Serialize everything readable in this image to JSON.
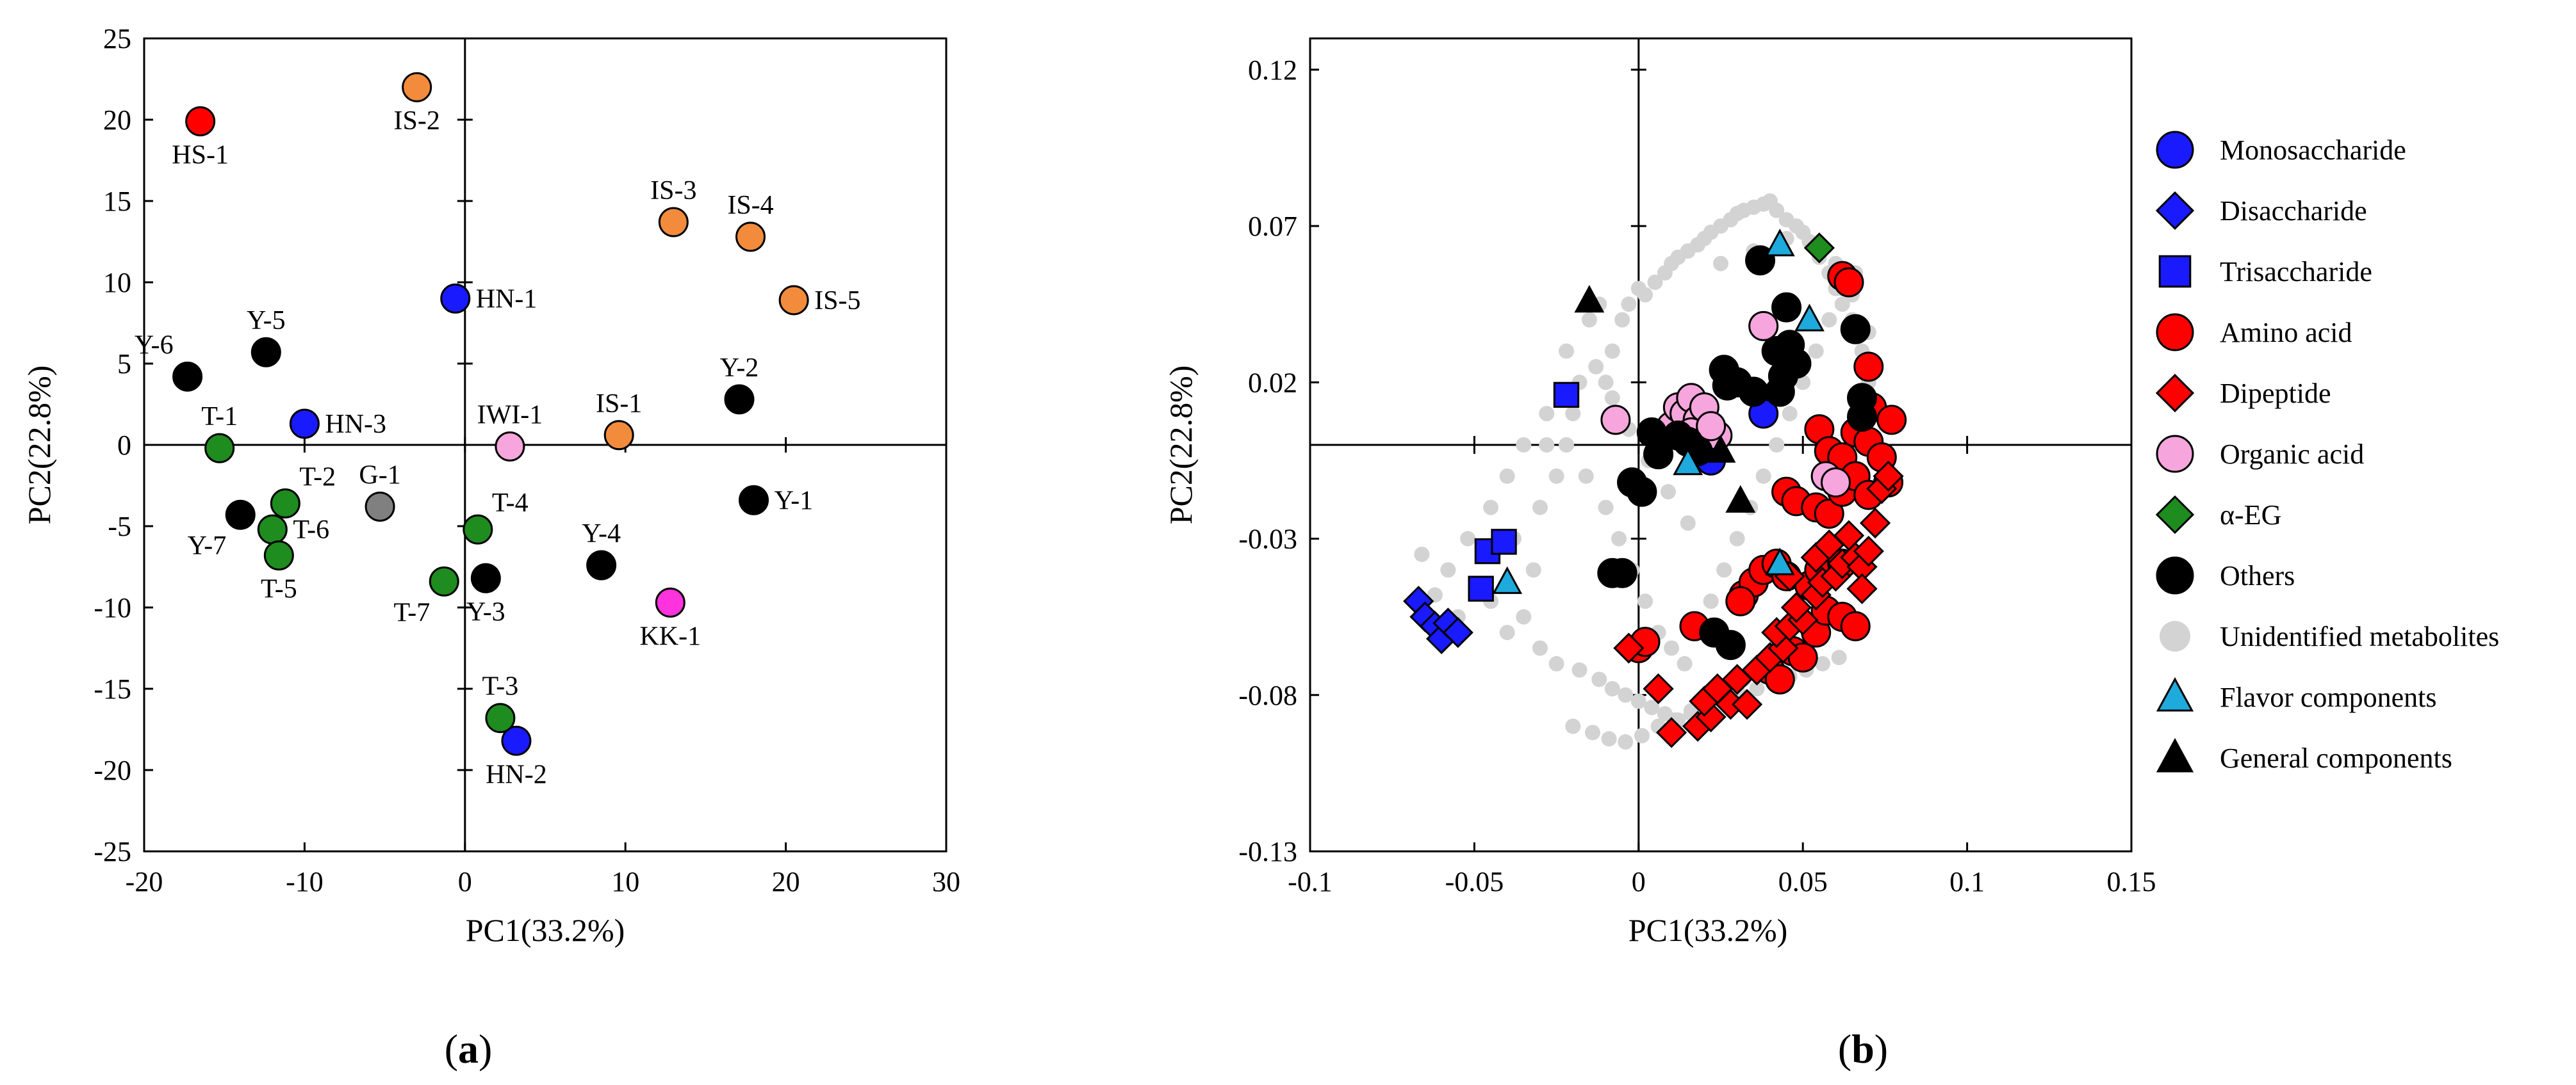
{
  "chart_data": [
    {
      "type": "scatter",
      "panel_label": "a",
      "xlabel": "PC1(33.2%)",
      "ylabel": "PC2(22.8%)",
      "xlim": [
        -20,
        30
      ],
      "ylim": [
        -25,
        25
      ],
      "xticks": [
        -20,
        -10,
        0,
        10,
        20,
        30
      ],
      "yticks": [
        -25,
        -20,
        -15,
        -10,
        -5,
        0,
        5,
        10,
        15,
        20,
        25
      ],
      "colors": {
        "red": "#ff0000",
        "orange": "#f28c3c",
        "blue": "#1a1aff",
        "green": "#1e8c1e",
        "black": "#000000",
        "gray": "#808080",
        "pink": "#f6a6dc",
        "magenta": "#ff33dd"
      },
      "points": [
        {
          "label": "HS-1",
          "x": -16.5,
          "y": 19.9,
          "color": "red",
          "label_pos": "below"
        },
        {
          "label": "IS-2",
          "x": -3.0,
          "y": 22.0,
          "color": "orange",
          "label_pos": "below"
        },
        {
          "label": "IS-3",
          "x": 13.0,
          "y": 13.7,
          "color": "orange",
          "label_pos": "above"
        },
        {
          "label": "IS-4",
          "x": 17.8,
          "y": 12.8,
          "color": "orange",
          "label_pos": "above"
        },
        {
          "label": "IS-5",
          "x": 20.5,
          "y": 8.9,
          "color": "orange",
          "label_pos": "right"
        },
        {
          "label": "IS-1",
          "x": 9.6,
          "y": 0.6,
          "color": "orange",
          "label_pos": "above"
        },
        {
          "label": "HN-1",
          "x": -0.6,
          "y": 9.0,
          "color": "blue",
          "label_pos": "right"
        },
        {
          "label": "HN-3",
          "x": -10.0,
          "y": 1.3,
          "color": "blue",
          "label_pos": "right"
        },
        {
          "label": "HN-2",
          "x": 3.2,
          "y": -18.2,
          "color": "blue",
          "label_pos": "below"
        },
        {
          "label": "Y-6",
          "x": -17.3,
          "y": 4.2,
          "color": "black",
          "label_pos": "above-left"
        },
        {
          "label": "Y-5",
          "x": -12.4,
          "y": 5.7,
          "color": "black",
          "label_pos": "above"
        },
        {
          "label": "Y-2",
          "x": 17.1,
          "y": 2.8,
          "color": "black",
          "label_pos": "above"
        },
        {
          "label": "Y-1",
          "x": 18.0,
          "y": -3.4,
          "color": "black",
          "label_pos": "right"
        },
        {
          "label": "Y-7",
          "x": -14.0,
          "y": -4.3,
          "color": "black",
          "label_pos": "below-left"
        },
        {
          "label": "Y-4",
          "x": 8.5,
          "y": -7.4,
          "color": "black",
          "label_pos": "above"
        },
        {
          "label": "Y-3",
          "x": 1.3,
          "y": -8.2,
          "color": "black",
          "label_pos": "below"
        },
        {
          "label": "T-1",
          "x": -15.3,
          "y": -0.2,
          "color": "green",
          "label_pos": "above"
        },
        {
          "label": "T-2",
          "x": -11.2,
          "y": -3.6,
          "color": "green",
          "label_pos": "above-right"
        },
        {
          "label": "T-6",
          "x": -12.0,
          "y": -5.2,
          "color": "green",
          "label_pos": "right"
        },
        {
          "label": "T-5",
          "x": -11.6,
          "y": -6.8,
          "color": "green",
          "label_pos": "below"
        },
        {
          "label": "T-4",
          "x": 0.8,
          "y": -5.2,
          "color": "green",
          "label_pos": "above-right"
        },
        {
          "label": "T-7",
          "x": -1.3,
          "y": -8.4,
          "color": "green",
          "label_pos": "below-left"
        },
        {
          "label": "T-3",
          "x": 2.2,
          "y": -16.8,
          "color": "green",
          "label_pos": "above"
        },
        {
          "label": "G-1",
          "x": -5.3,
          "y": -3.8,
          "color": "gray",
          "label_pos": "above"
        },
        {
          "label": "IWI-1",
          "x": 2.8,
          "y": -0.1,
          "color": "pink",
          "label_pos": "above"
        },
        {
          "label": "KK-1",
          "x": 12.8,
          "y": -9.7,
          "color": "magenta",
          "label_pos": "below"
        }
      ]
    },
    {
      "type": "scatter",
      "panel_label": "b",
      "xlabel": "PC1(33.2%)",
      "ylabel": "PC2(22.8%)",
      "xlim": [
        -0.1,
        0.15
      ],
      "ylim": [
        -0.13,
        0.13
      ],
      "xticks": [
        -0.1,
        -0.05,
        0,
        0.05,
        0.1,
        0.15
      ],
      "xtick_labels": [
        "-0.1",
        "-0.05",
        "0",
        "0.05",
        "0.1",
        "0.15"
      ],
      "yticks": [
        -0.13,
        -0.08,
        -0.03,
        0.02,
        0.07,
        0.12
      ],
      "ytick_labels": [
        "-0.13",
        "-0.08",
        "-0.03",
        "0.02",
        "0.07",
        "0.12"
      ],
      "legend": [
        {
          "label": "Monosaccharide",
          "marker": "circle",
          "color": "#1a1aff"
        },
        {
          "label": "Disaccharide",
          "marker": "diamond",
          "color": "#1a1aff"
        },
        {
          "label": "Trisaccharide",
          "marker": "square",
          "color": "#1a1aff"
        },
        {
          "label": "Amino acid",
          "marker": "circle",
          "color": "#ff0000"
        },
        {
          "label": "Dipeptide",
          "marker": "diamond",
          "color": "#ff0000"
        },
        {
          "label": "Organic acid",
          "marker": "circle",
          "color": "#f6a6dc"
        },
        {
          "label": "α-EG",
          "marker": "diamond",
          "color": "#1e8c1e"
        },
        {
          "label": "Others",
          "marker": "circle",
          "color": "#000000"
        },
        {
          "label": "Unidentified metabolites",
          "marker": "dot",
          "color": "#d3d3d3"
        },
        {
          "label": "Flavor components",
          "marker": "triangle",
          "color": "#1eaadc"
        },
        {
          "label": "General components",
          "marker": "triangle",
          "color": "#000000"
        }
      ],
      "series": [
        {
          "name": "Unidentified metabolites",
          "marker": "dot",
          "color": "#d3d3d3",
          "x": [
            -0.066,
            -0.058,
            -0.052,
            -0.048,
            -0.062,
            -0.055,
            -0.045,
            -0.04,
            -0.035,
            -0.032,
            -0.038,
            -0.03,
            -0.025,
            -0.028,
            -0.02,
            -0.018,
            -0.022,
            -0.015,
            -0.012,
            -0.01,
            -0.008,
            -0.005,
            -0.003,
            0.0,
            0.002,
            0.005,
            0.008,
            0.01,
            0.012,
            0.015,
            0.018,
            0.02,
            0.022,
            0.025,
            0.028,
            0.03,
            0.032,
            0.035,
            0.038,
            0.04,
            0.042,
            0.045,
            0.048,
            0.05,
            0.052,
            0.055,
            0.058,
            0.06,
            0.062,
            0.065,
            0.068,
            0.07,
            -0.03,
            -0.025,
            -0.018,
            -0.012,
            -0.008,
            -0.004,
            0.0,
            0.004,
            0.008,
            0.012,
            0.016,
            0.02,
            0.024,
            0.028,
            0.032,
            0.036,
            0.04,
            0.044,
            0.048,
            0.052,
            0.056,
            0.06,
            -0.045,
            -0.04,
            -0.035,
            -0.028,
            -0.022,
            -0.016,
            -0.01,
            -0.006,
            -0.002,
            0.002,
            0.006,
            0.01,
            0.014,
            0.018,
            0.022,
            0.026,
            0.03,
            0.034,
            0.038,
            0.042,
            0.046,
            0.05,
            0.054,
            0.058,
            0.062,
            0.066,
            -0.02,
            -0.014,
            -0.009,
            -0.004,
            0.001,
            0.006,
            0.011,
            0.016,
            0.021,
            0.026,
            0.031,
            0.036,
            0.041,
            0.046,
            0.051,
            0.056,
            0.061,
            -0.013,
            -0.008,
            -0.003,
            0.003,
            0.009,
            0.015,
            0.025,
            0.035,
            0.045,
            0.055,
            0.06,
            0.065,
            0.07,
            0.072
          ],
          "y": [
            -0.035,
            -0.04,
            -0.03,
            -0.045,
            -0.048,
            -0.055,
            -0.05,
            -0.06,
            -0.055,
            -0.04,
            -0.03,
            -0.02,
            -0.01,
            0.0,
            0.01,
            0.02,
            0.03,
            0.04,
            0.045,
            0.02,
            0.03,
            0.04,
            0.045,
            0.05,
            0.048,
            0.052,
            0.055,
            0.058,
            0.06,
            0.062,
            0.064,
            0.066,
            0.068,
            0.07,
            0.072,
            0.074,
            0.075,
            0.076,
            0.077,
            0.078,
            0.075,
            0.072,
            0.07,
            0.068,
            0.065,
            0.06,
            0.055,
            0.05,
            0.045,
            0.04,
            0.03,
            0.02,
            -0.065,
            -0.07,
            -0.072,
            -0.075,
            -0.078,
            -0.08,
            -0.082,
            -0.084,
            -0.086,
            -0.088,
            -0.085,
            -0.082,
            -0.08,
            -0.078,
            -0.075,
            -0.072,
            -0.07,
            -0.068,
            -0.065,
            -0.062,
            -0.06,
            -0.055,
            -0.02,
            -0.01,
            0.0,
            0.01,
            0.0,
            -0.01,
            -0.02,
            -0.03,
            -0.04,
            -0.05,
            -0.06,
            -0.065,
            -0.07,
            -0.06,
            -0.05,
            -0.04,
            -0.03,
            -0.02,
            -0.01,
            0.0,
            0.01,
            0.02,
            0.03,
            0.04,
            0.05,
            0.055,
            -0.09,
            -0.092,
            -0.094,
            -0.095,
            -0.093,
            -0.09,
            -0.088,
            -0.086,
            -0.084,
            -0.082,
            -0.08,
            -0.078,
            -0.076,
            -0.074,
            -0.072,
            -0.07,
            -0.068,
            0.025,
            0.015,
            0.005,
            -0.005,
            -0.015,
            -0.025,
            0.058,
            0.062,
            0.066,
            0.064,
            0.058,
            0.048,
            0.036,
            0.024
          ]
        },
        {
          "name": "Monosaccharide",
          "marker": "circle",
          "color": "#1a1aff",
          "x": [
            0.038,
            0.018,
            0.022,
            0.015,
            0.02
          ],
          "y": [
            0.01,
            -0.002,
            -0.005,
            0.002,
            0.0
          ]
        },
        {
          "name": "Disaccharide",
          "marker": "diamond",
          "color": "#1a1aff",
          "x": [
            -0.067,
            -0.065,
            -0.062,
            -0.06,
            -0.058,
            -0.055
          ],
          "y": [
            -0.05,
            -0.055,
            -0.058,
            -0.062,
            -0.057,
            -0.06
          ]
        },
        {
          "name": "Trisaccharide",
          "marker": "square",
          "color": "#1a1aff",
          "x": [
            -0.022,
            -0.048,
            -0.046,
            -0.041
          ],
          "y": [
            0.016,
            -0.046,
            -0.034,
            -0.031
          ]
        },
        {
          "name": "Amino acid",
          "marker": "circle",
          "color": "#ff0000",
          "x": [
            0.062,
            0.064,
            0.07,
            0.071,
            0.077,
            0.055,
            0.058,
            0.062,
            0.066,
            0.07,
            0.074,
            0.076,
            0.045,
            0.048,
            0.054,
            0.058,
            0.062,
            0.066,
            0.07,
            0.04,
            0.043,
            0.047,
            0.05,
            0.054,
            0.057,
            0.062,
            0.066,
            0.032,
            0.035,
            0.038,
            0.042,
            0.045,
            0.052,
            0.055,
            0.062,
            0.0,
            0.002,
            0.017,
            0.031
          ],
          "y": [
            0.054,
            0.052,
            0.025,
            0.012,
            0.008,
            0.005,
            -0.002,
            -0.004,
            0.004,
            0.001,
            -0.004,
            -0.012,
            -0.015,
            -0.018,
            -0.02,
            -0.022,
            -0.015,
            -0.01,
            -0.016,
            -0.072,
            -0.075,
            -0.066,
            -0.068,
            -0.06,
            -0.053,
            -0.055,
            -0.058,
            -0.048,
            -0.044,
            -0.04,
            -0.038,
            -0.042,
            -0.045,
            -0.04,
            -0.038,
            -0.065,
            -0.063,
            -0.058,
            -0.05
          ]
        },
        {
          "name": "Dipeptide",
          "marker": "diamond",
          "color": "#ff0000",
          "x": [
            -0.003,
            0.006,
            0.01,
            0.018,
            0.022,
            0.02,
            0.028,
            0.024,
            0.033,
            0.03,
            0.036,
            0.04,
            0.044,
            0.042,
            0.046,
            0.05,
            0.048,
            0.054,
            0.056,
            0.06,
            0.062,
            0.066,
            0.068,
            0.07,
            0.068,
            0.072,
            0.074,
            0.076,
            0.054,
            0.046,
            0.058,
            0.064
          ],
          "y": [
            -0.065,
            -0.078,
            -0.092,
            -0.09,
            -0.087,
            -0.082,
            -0.083,
            -0.078,
            -0.083,
            -0.075,
            -0.072,
            -0.068,
            -0.065,
            -0.06,
            -0.058,
            -0.056,
            -0.052,
            -0.048,
            -0.044,
            -0.042,
            -0.038,
            -0.036,
            -0.039,
            -0.034,
            -0.046,
            -0.025,
            -0.014,
            -0.01,
            -0.036,
            -0.042,
            -0.032,
            -0.029
          ]
        },
        {
          "name": "Organic acid",
          "marker": "circle",
          "color": "#f6a6dc",
          "x": [
            -0.007,
            0.01,
            0.012,
            0.014,
            0.016,
            0.018,
            0.02,
            0.038,
            0.057,
            0.06,
            0.024,
            0.016,
            0.022
          ],
          "y": [
            0.008,
            0.006,
            0.012,
            0.01,
            0.015,
            0.008,
            0.012,
            0.038,
            -0.01,
            -0.012,
            0.003,
            0.004,
            0.006
          ]
        },
        {
          "name": "α-EG",
          "marker": "diamond",
          "color": "#1e8c1e",
          "x": [
            0.055
          ],
          "y": [
            0.063
          ]
        },
        {
          "name": "Others",
          "marker": "circle",
          "color": "#000000",
          "x": [
            0.037,
            0.045,
            0.046,
            0.042,
            0.044,
            0.048,
            0.066,
            0.068,
            0.068,
            0.026,
            0.03,
            0.027,
            0.035,
            0.043,
            0.012,
            0.015,
            0.018,
            0.004,
            0.006,
            -0.002,
            0.001,
            -0.008,
            -0.005,
            0.023,
            0.028
          ],
          "y": [
            0.059,
            0.044,
            0.032,
            0.03,
            0.022,
            0.026,
            0.037,
            0.015,
            0.009,
            0.024,
            0.02,
            0.019,
            0.017,
            0.017,
            0.003,
            0.001,
            -0.002,
            0.004,
            -0.003,
            -0.012,
            -0.015,
            -0.041,
            -0.041,
            -0.06,
            -0.064
          ]
        },
        {
          "name": "Flavor components",
          "marker": "triangle",
          "color": "#1eaadc",
          "x": [
            0.043,
            0.052,
            0.015,
            0.043,
            -0.04
          ],
          "y": [
            0.064,
            0.04,
            -0.006,
            -0.038,
            -0.044
          ]
        },
        {
          "name": "General components",
          "marker": "triangle",
          "color": "#000000",
          "x": [
            -0.015,
            0.031,
            0.025
          ],
          "y": [
            0.046,
            -0.018,
            -0.002
          ]
        }
      ]
    }
  ]
}
